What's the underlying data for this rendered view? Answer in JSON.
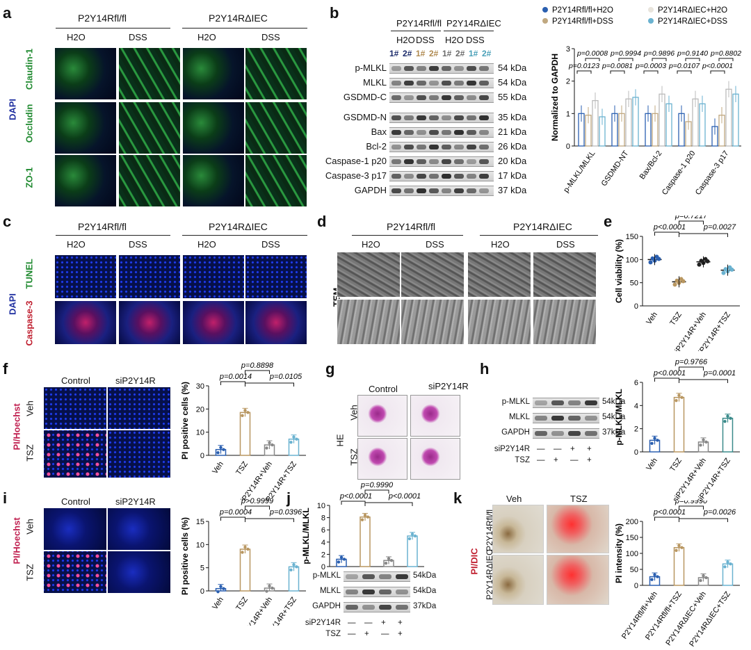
{
  "panels": {
    "a": "a",
    "b": "b",
    "c": "c",
    "d": "d",
    "e": "e",
    "f": "f",
    "g": "g",
    "h": "h",
    "i": "i",
    "j": "j",
    "k": "k"
  },
  "groups": {
    "flfl": "P2Y14Rfl/fl",
    "diec": "P2Y14RΔIEC"
  },
  "conditions": {
    "h2o": "H2O",
    "dss": "DSS",
    "control": "Control",
    "sip2y": "siP2Y14R",
    "veh": "Veh",
    "tsz": "TSZ"
  },
  "panel_a": {
    "side_label": "DAPI",
    "rows": [
      "Claudin-1",
      "Occludin",
      "ZO-1"
    ]
  },
  "panel_b": {
    "lanes": [
      "1#",
      "2#",
      "1#",
      "2#",
      "1#",
      "2#",
      "1#",
      "2#"
    ],
    "blots": [
      {
        "name": "p-MLKL",
        "kda": "54 kDa"
      },
      {
        "name": "MLKL",
        "kda": "54 kDa"
      },
      {
        "name": "GSDMD-C",
        "kda": "55 kDa"
      },
      {
        "name": "GSDMD-N",
        "kda": "35 kDa"
      },
      {
        "name": "Bax",
        "kda": "21 kDa"
      },
      {
        "name": "Bcl-2",
        "kda": "26 kDa"
      },
      {
        "name": "Caspase-1 p20",
        "kda": "20 kDa"
      },
      {
        "name": "Caspase-3 p17",
        "kda": "17 kDa"
      },
      {
        "name": "GAPDH",
        "kda": "37 kDa"
      }
    ]
  },
  "panel_c": {
    "side_label": "DAPI",
    "rows": [
      "TUNEL",
      "Caspase-3"
    ]
  },
  "panel_d": {
    "side_label": "TEM"
  },
  "chart_data": [
    {
      "id": "b",
      "type": "bar",
      "ylabel": "Normalized to GAPDH",
      "ylim": [
        0,
        3
      ],
      "yticks": [
        0,
        1,
        2,
        3
      ],
      "categories": [
        "p-MLKL/MLKL",
        "GSDMD-NT",
        "Bax/Bcl-2",
        "Caspase-1 p20",
        "Caspase-3 p17"
      ],
      "legend": [
        "P2Y14Rfl/fl+H2O",
        "P2Y14RΔIEC+H2O",
        "P2Y14Rfl/fl+DSS",
        "P2Y14RΔIEC+DSS"
      ],
      "colors": [
        "#2a5fb0",
        "#e8e4dc",
        "#c0a880",
        "#6ab2d0"
      ],
      "series": [
        {
          "name": "P2Y14Rfl/fl+H2O",
          "values": [
            1.0,
            1.0,
            1.0,
            1.0,
            0.6
          ]
        },
        {
          "name": "P2Y14Rfl/fl+DSS",
          "values": [
            1.4,
            1.45,
            1.6,
            1.45,
            1.75
          ]
        },
        {
          "name": "P2Y14RΔIEC+H2O",
          "values": [
            0.95,
            1.0,
            1.0,
            0.75,
            0.95
          ]
        },
        {
          "name": "P2Y14RΔIEC+DSS",
          "values": [
            0.9,
            1.5,
            1.3,
            1.3,
            1.6
          ]
        }
      ],
      "pvalues": [
        "p=0.0123",
        "p=0.0008",
        "p=0.0081",
        "p=0.9994",
        "p=0.0003",
        "p=0.9896",
        "p=0.0107",
        "p=0.9140",
        "p<0.0001",
        "p=0.8802"
      ]
    },
    {
      "id": "e",
      "type": "scatter",
      "ylabel": "Cell viability (%)",
      "ylim": [
        0,
        150
      ],
      "yticks": [
        0,
        50,
        100,
        150
      ],
      "categories": [
        "Veh",
        "TSZ",
        "siP2Y14R+Veh",
        "siP2Y14R+TSZ"
      ],
      "values": [
        100,
        52,
        95,
        77
      ],
      "colors": [
        "#2a5fb0",
        "#b89660",
        "#222222",
        "#6ab2d0"
      ],
      "pvalues": [
        "p=0.7217",
        "p<0.0001",
        "p=0.0027"
      ]
    },
    {
      "id": "f",
      "type": "bar",
      "ylabel": "PI positive cells (%)",
      "ylim": [
        0,
        30
      ],
      "yticks": [
        0,
        10,
        20,
        30
      ],
      "categories": [
        "Veh",
        "TSZ",
        "siP2Y14R+Veh",
        "siP2Y14R+TSZ"
      ],
      "values": [
        2.5,
        18.5,
        4.5,
        7
      ],
      "colors": [
        "#2a5fb0",
        "#b89660",
        "#888888",
        "#6ab2d0"
      ],
      "pvalues": [
        "p=0.8898",
        "p=0.0014",
        "p=0.0105"
      ]
    },
    {
      "id": "h",
      "type": "bar",
      "ylabel": "p-MLKL/MLKL",
      "ylim": [
        0,
        6
      ],
      "yticks": [
        0,
        2,
        4,
        6
      ],
      "categories": [
        "Veh",
        "TSZ",
        "siP2Y14R+Veh",
        "siP2Y14R+TSZ"
      ],
      "values": [
        1.0,
        4.7,
        0.85,
        2.9
      ],
      "colors": [
        "#2a5fb0",
        "#b89660",
        "#888888",
        "#3a8a8a"
      ],
      "pvalues": [
        "p=0.9766",
        "p<0.0001",
        "p=0.0001"
      ]
    },
    {
      "id": "i",
      "type": "bar",
      "ylabel": "PI positive cells (%)",
      "ylim": [
        0,
        15
      ],
      "yticks": [
        0,
        5,
        10,
        15
      ],
      "categories": [
        "Veh",
        "TSZ",
        "siP2Y14R+Veh",
        "siP2Y14R+TSZ"
      ],
      "values": [
        0.5,
        9,
        0.6,
        5.2
      ],
      "colors": [
        "#2a5fb0",
        "#b89660",
        "#888888",
        "#6ab2d0"
      ],
      "pvalues": [
        "p>0.9999",
        "p=0.0004",
        "p=0.0396"
      ]
    },
    {
      "id": "j",
      "type": "bar",
      "ylabel": "p-MLKL/MLKL",
      "ylim": [
        0,
        10
      ],
      "yticks": [
        0,
        2,
        4,
        6,
        8,
        10
      ],
      "categories": [
        "Veh",
        "TSZ",
        "siP2Y14R+Veh",
        "siP2Y14R+TSZ"
      ],
      "values": [
        1.2,
        8.1,
        1.0,
        5.0
      ],
      "colors": [
        "#2a5fb0",
        "#b89660",
        "#888888",
        "#6ab2d0"
      ],
      "pvalues": [
        "p=0.9990",
        "p<0.0001",
        "p<0.0001"
      ]
    },
    {
      "id": "k",
      "type": "bar",
      "ylabel": "PI intensity (%)",
      "ylim": [
        0,
        200
      ],
      "yticks": [
        0,
        50,
        100,
        150,
        200
      ],
      "categories": [
        "P2Y14Rfl/fl+Veh",
        "P2Y14Rfl/fl+TSZ",
        "P2Y14RΔIEC+Veh",
        "P2Y14RΔIEC+TSZ"
      ],
      "values": [
        27,
        118,
        24,
        67
      ],
      "colors": [
        "#2a5fb0",
        "#b89660",
        "#888888",
        "#6ab2d0"
      ],
      "pvalues": [
        "p=0.9990",
        "p<0.0001",
        "p=0.0026"
      ]
    }
  ],
  "blot_small": {
    "rows": [
      {
        "name": "p-MLKL",
        "kda": "54kDa"
      },
      {
        "name": "MLKL",
        "kda": "54kDa"
      },
      {
        "name": "GAPDH",
        "kda": "37kDa"
      }
    ],
    "sirna_label": "siP2Y14R",
    "tsz_label": "TSZ",
    "sirna": [
      "—",
      "—",
      "+",
      "+"
    ],
    "tsz": [
      "—",
      "+",
      "—",
      "+"
    ]
  },
  "panel_fi_side": "PI/Hoechst",
  "panel_g_side": "HE",
  "panel_k_side": "PI/DIC"
}
